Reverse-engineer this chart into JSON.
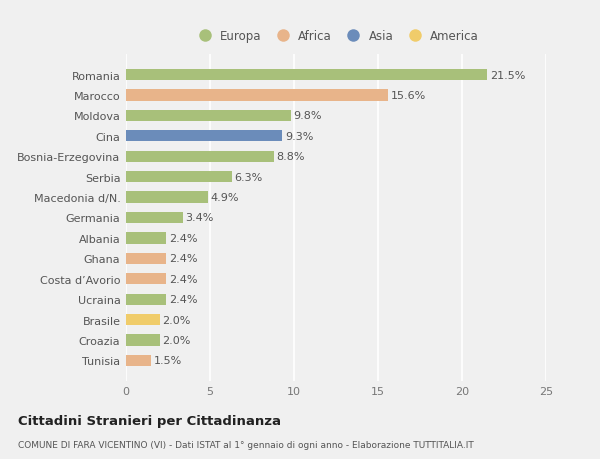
{
  "categories": [
    "Romania",
    "Marocco",
    "Moldova",
    "Cina",
    "Bosnia-Erzegovina",
    "Serbia",
    "Macedonia d/N.",
    "Germania",
    "Albania",
    "Ghana",
    "Costa d’Avorio",
    "Ucraina",
    "Brasile",
    "Croazia",
    "Tunisia"
  ],
  "values": [
    21.5,
    15.6,
    9.8,
    9.3,
    8.8,
    6.3,
    4.9,
    3.4,
    2.4,
    2.4,
    2.4,
    2.4,
    2.0,
    2.0,
    1.5
  ],
  "colors": [
    "#a8c07a",
    "#e8b48a",
    "#a8c07a",
    "#6b8cba",
    "#a8c07a",
    "#a8c07a",
    "#a8c07a",
    "#a8c07a",
    "#a8c07a",
    "#e8b48a",
    "#e8b48a",
    "#a8c07a",
    "#f0cc6a",
    "#a8c07a",
    "#e8b48a"
  ],
  "legend_labels": [
    "Europa",
    "Africa",
    "Asia",
    "America"
  ],
  "legend_colors": [
    "#a8c07a",
    "#e8b48a",
    "#6b8cba",
    "#f0cc6a"
  ],
  "title": "Cittadini Stranieri per Cittadinanza",
  "subtitle": "COMUNE DI FARA VICENTINO (VI) - Dati ISTAT al 1° gennaio di ogni anno - Elaborazione TUTTITALIA.IT",
  "xlim": [
    0,
    25
  ],
  "xticks": [
    0,
    5,
    10,
    15,
    20,
    25
  ],
  "background_color": "#f0f0f0",
  "plot_bg_color": "#f0f0f0",
  "grid_color": "#ffffff",
  "label_fontsize": 8,
  "tick_fontsize": 8,
  "bar_height": 0.55
}
